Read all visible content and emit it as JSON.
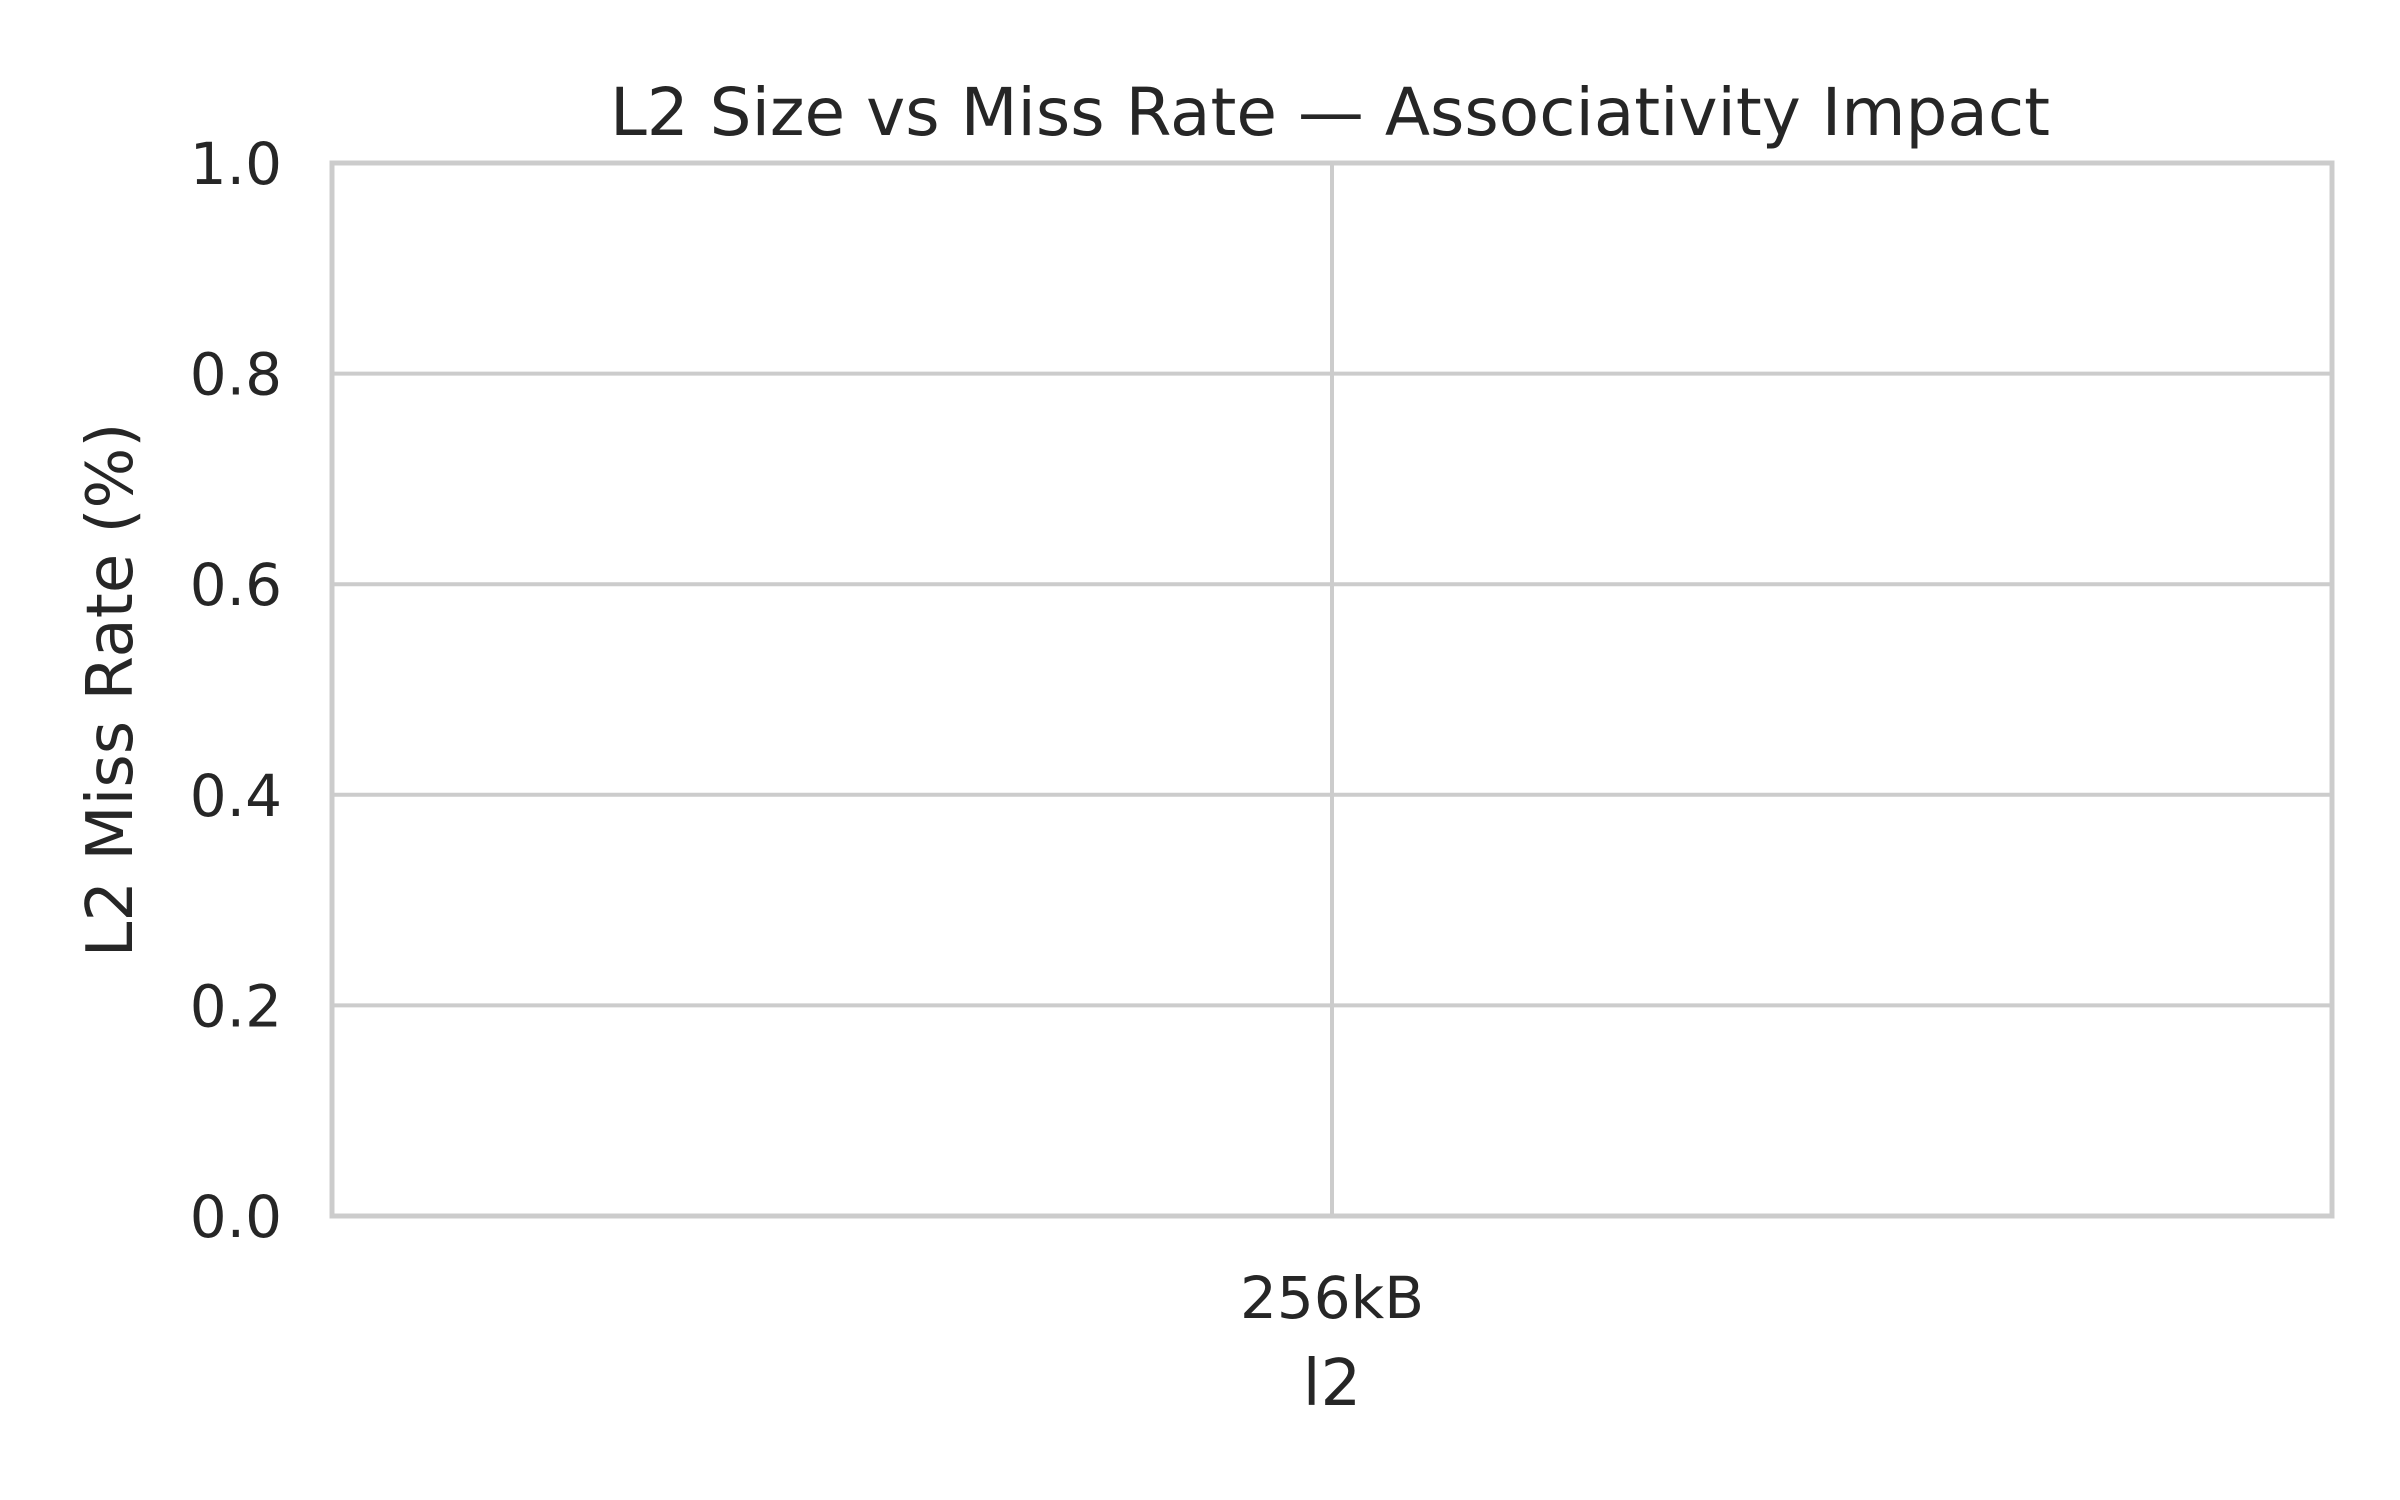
{
  "chart_data": {
    "type": "bar",
    "title": "L2 Size vs Miss Rate — Associativity Impact",
    "xlabel": "l2",
    "ylabel": "L2 Miss Rate (%)",
    "categories": [
      "256kB"
    ],
    "series": [],
    "ylim": [
      0.0,
      1.0
    ],
    "yticks": [
      0.0,
      0.2,
      0.4,
      0.6,
      0.8,
      1.0
    ],
    "ytick_labels": [
      "0.0",
      "0.2",
      "0.4",
      "0.6",
      "0.8",
      "1.0"
    ],
    "grid": true,
    "colors": {
      "grid": "#cccccc",
      "text": "#262626",
      "background": "#ffffff"
    }
  }
}
